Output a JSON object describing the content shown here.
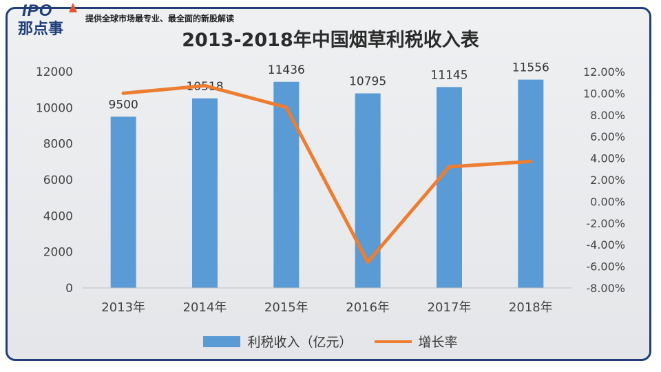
{
  "header": {
    "brand_line1": "IPO",
    "brand_line2": "那点事",
    "slogan": "提供全球市场最专业、最全面的新股解读"
  },
  "colors": {
    "bar": "#5b9bd5",
    "line": "#ed7d31",
    "frame": "#1f3e7a"
  },
  "chart_data": {
    "type": "bar",
    "title": "2013-2018年中国烟草利税收入表",
    "categories": [
      "2013年",
      "2014年",
      "2015年",
      "2016年",
      "2017年",
      "2018年"
    ],
    "series": [
      {
        "name": "利税收入（亿元）",
        "type": "bar",
        "axis": "left",
        "values": [
          9500,
          10518,
          11436,
          10795,
          11145,
          11556
        ]
      },
      {
        "name": "增长率",
        "type": "line",
        "axis": "right",
        "values": [
          10.0,
          10.7,
          8.7,
          -5.6,
          3.2,
          3.7
        ]
      }
    ],
    "data_labels": [
      "9500",
      "10518",
      "11436",
      "10795",
      "11145",
      "11556"
    ],
    "y_left": {
      "min": 0,
      "max": 12000,
      "ticks": [
        "0",
        "2000",
        "4000",
        "6000",
        "8000",
        "10000",
        "12000"
      ]
    },
    "y_right": {
      "min": -8,
      "max": 12,
      "ticks": [
        "-8.00%",
        "-6.00%",
        "-4.00%",
        "-2.00%",
        "0.00%",
        "2.00%",
        "4.00%",
        "6.00%",
        "8.00%",
        "10.00%",
        "12.00%"
      ]
    },
    "legend_position": "bottom",
    "grid": false
  }
}
